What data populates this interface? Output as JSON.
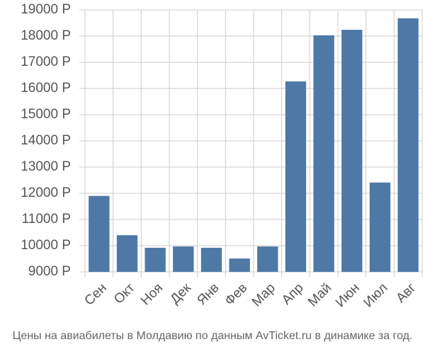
{
  "chart_data": {
    "type": "bar",
    "caption": "Цены на авиабилеты в Молдавию по данным AvTicket.ru в динамике за год.",
    "categories": [
      "Сен",
      "Окт",
      "Ноя",
      "Дек",
      "Янв",
      "Фев",
      "Мар",
      "Апр",
      "Май",
      "Июн",
      "Июл",
      "Авг"
    ],
    "values": [
      11900,
      10400,
      9920,
      9970,
      9920,
      9510,
      9970,
      16270,
      18030,
      18240,
      12410,
      18680
    ],
    "color": "#4e79a7",
    "ylim": [
      9000,
      19000
    ],
    "yticks": [
      {
        "value": 9000,
        "label": "9000 Р"
      },
      {
        "value": 10000,
        "label": "10000 Р"
      },
      {
        "value": 11000,
        "label": "11000 Р"
      },
      {
        "value": 12000,
        "label": "12000 Р"
      },
      {
        "value": 13000,
        "label": "13000 Р"
      },
      {
        "value": 14000,
        "label": "14000 Р"
      },
      {
        "value": 15000,
        "label": "15000 Р"
      },
      {
        "value": 16000,
        "label": "16000 Р"
      },
      {
        "value": 17000,
        "label": "17000 Р"
      },
      {
        "value": 18000,
        "label": "18000 Р"
      },
      {
        "value": 19000,
        "label": "19000 Р"
      }
    ],
    "grid": true
  }
}
